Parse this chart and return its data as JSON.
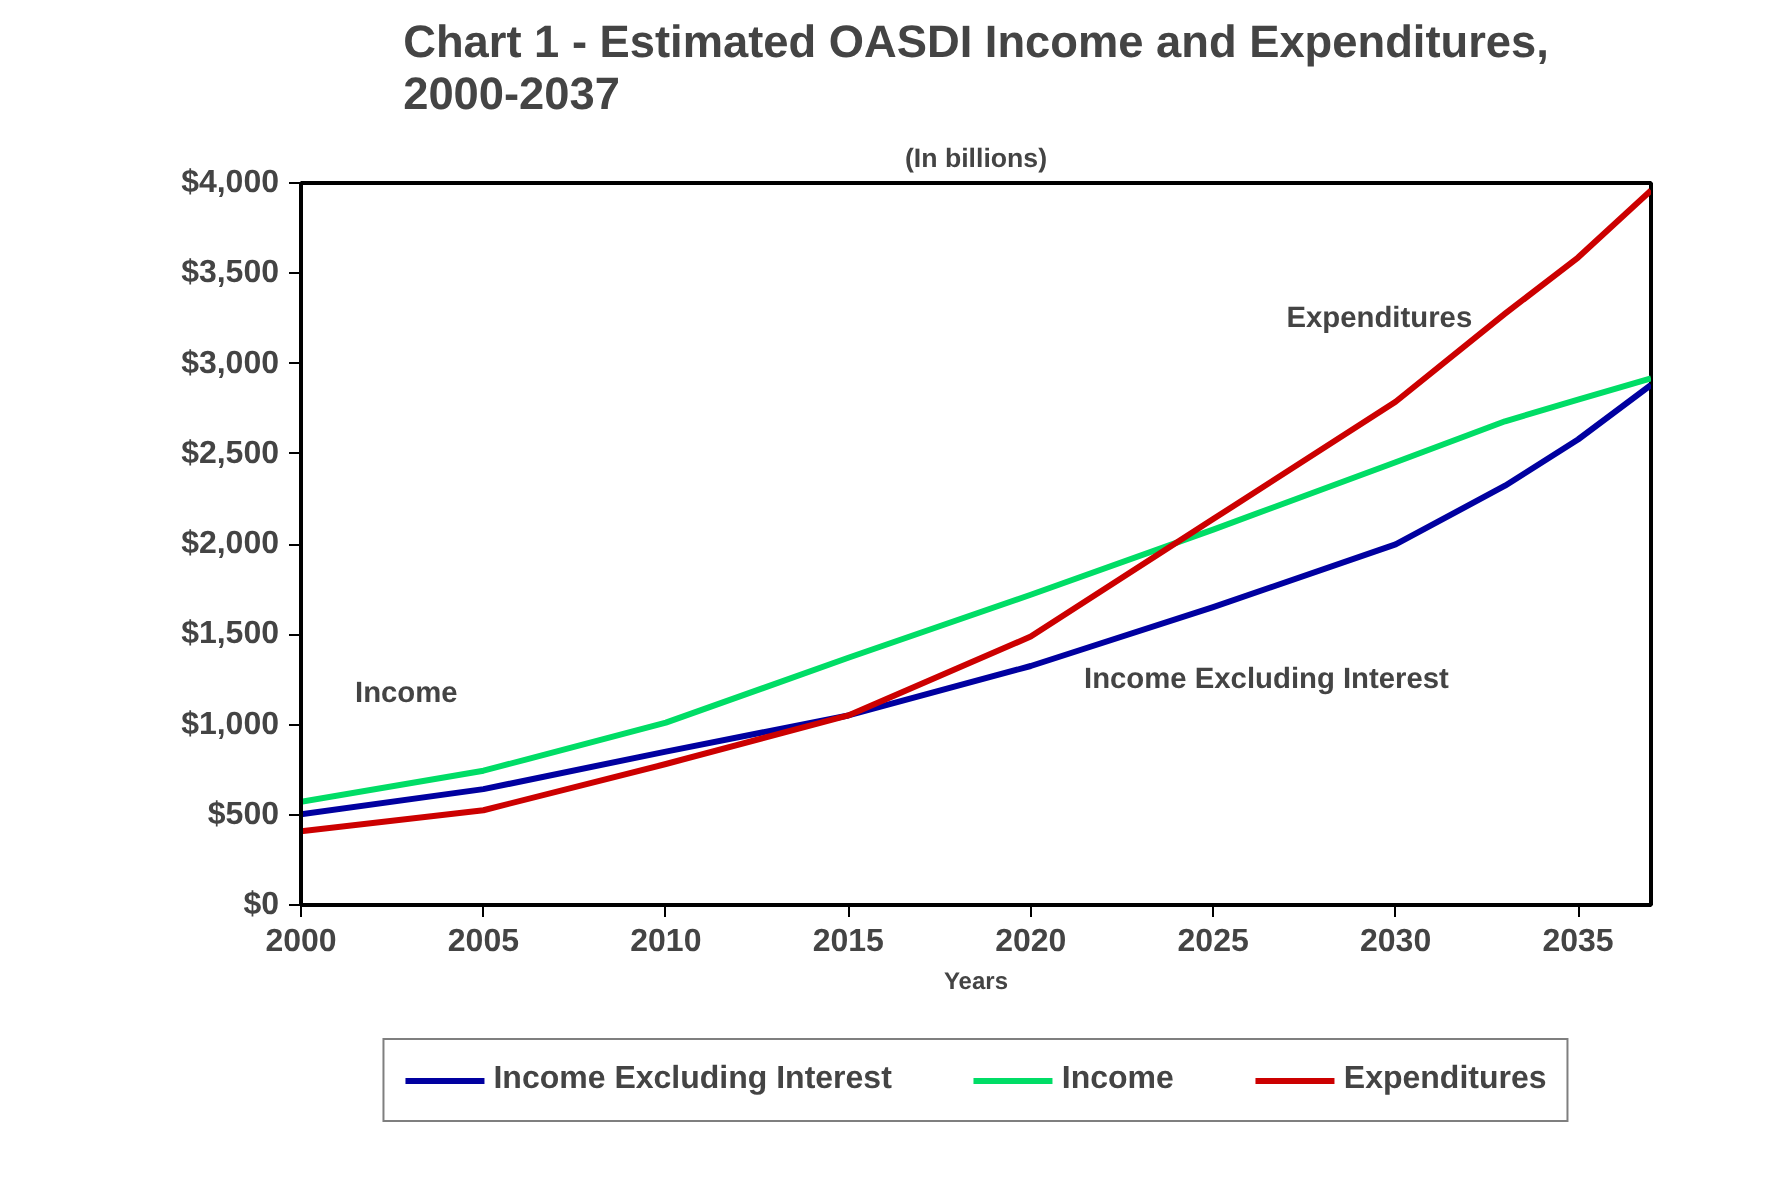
{
  "chart_data": {
    "type": "line",
    "title": "Chart 1 - Estimated OASDI Income and Expenditures, 2000-2037",
    "subtitle": "(In billions)",
    "xlabel": "Years",
    "x": [
      2000,
      2005,
      2010,
      2015,
      2020,
      2025,
      2030,
      2033,
      2035,
      2037
    ],
    "series": [
      {
        "name": "Income Excluding Interest",
        "color": "#0000a0",
        "values": [
          502,
          642,
          850,
          1050,
          1324,
          1650,
          1998,
          2323,
          2579,
          2881
        ]
      },
      {
        "name": "Income",
        "color": "#00dd66",
        "values": [
          572,
          744,
          1010,
          1370,
          1719,
          2080,
          2453,
          2680,
          2800,
          2918
        ]
      },
      {
        "name": "Expenditures",
        "color": "#cc0000",
        "values": [
          409,
          525,
          781,
          1050,
          1487,
          2138,
          2788,
          3276,
          3587,
          3959
        ]
      }
    ],
    "xlim": [
      2000,
      2037
    ],
    "xticks": [
      2000,
      2005,
      2010,
      2015,
      2020,
      2025,
      2030,
      2035
    ],
    "ylim": [
      0,
      4000
    ],
    "yticks": [
      {
        "value": 0,
        "label": "$0"
      },
      {
        "value": 500,
        "label": "$500"
      },
      {
        "value": 1000,
        "label": "$1,000"
      },
      {
        "value": 1500,
        "label": "$1,500"
      },
      {
        "value": 2000,
        "label": "$2,000"
      },
      {
        "value": 2500,
        "label": "$2,500"
      },
      {
        "value": 3000,
        "label": "$3,000"
      },
      {
        "value": 3500,
        "label": "$3,500"
      },
      {
        "value": 4000,
        "label": "$4,000"
      }
    ],
    "annotations": [
      "Income",
      "Expenditures",
      "Income Excluding Interest"
    ],
    "grid": false,
    "legend": "bottom",
    "marker": "none",
    "line_style": "solid"
  }
}
